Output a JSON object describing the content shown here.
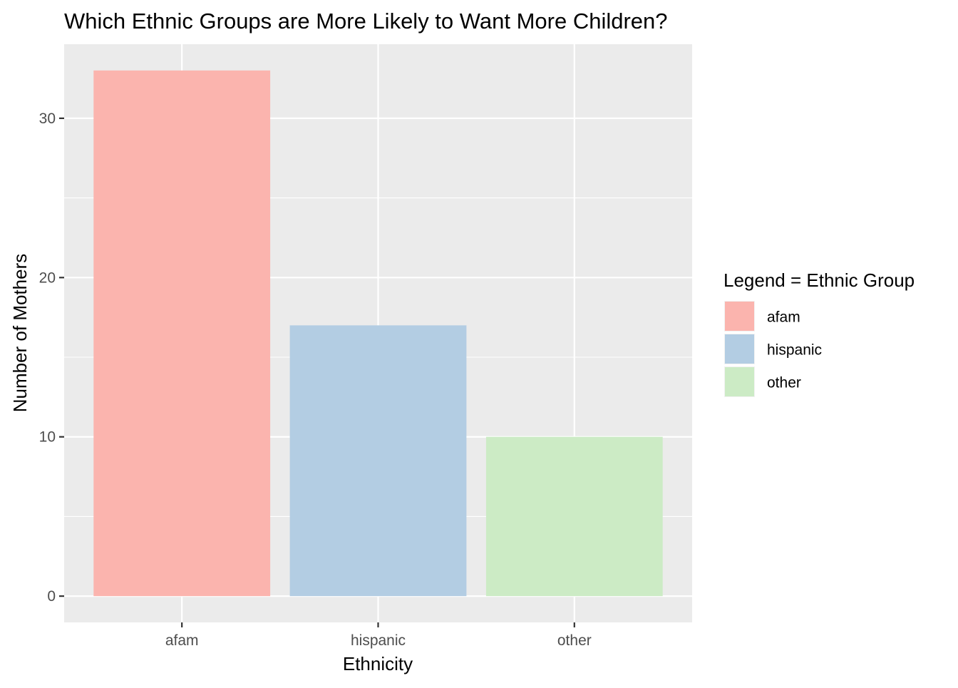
{
  "chart_data": {
    "type": "bar",
    "title": "Which Ethnic Groups are More Likely to Want More Children?",
    "xlabel": "Ethnicity",
    "ylabel": "Number of Mothers",
    "categories": [
      "afam",
      "hispanic",
      "other"
    ],
    "values": [
      33,
      17,
      10
    ],
    "colors": [
      "#FBB4AE",
      "#B3CDE3",
      "#CCEBC5"
    ],
    "ylim": [
      -1.65,
      34.65
    ],
    "yticks": [
      0,
      10,
      20,
      30
    ],
    "ytick_labels": [
      "0",
      "10",
      "20",
      "30"
    ],
    "grid": true,
    "panel_background": "#EBEBEB",
    "grid_color": "#FFFFFF",
    "legend": {
      "title": "Legend = Ethnic Group",
      "position": "right",
      "entries": [
        {
          "label": "afam",
          "color": "#FBB4AE"
        },
        {
          "label": "hispanic",
          "color": "#B3CDE3"
        },
        {
          "label": "other",
          "color": "#CCEBC5"
        }
      ]
    }
  }
}
